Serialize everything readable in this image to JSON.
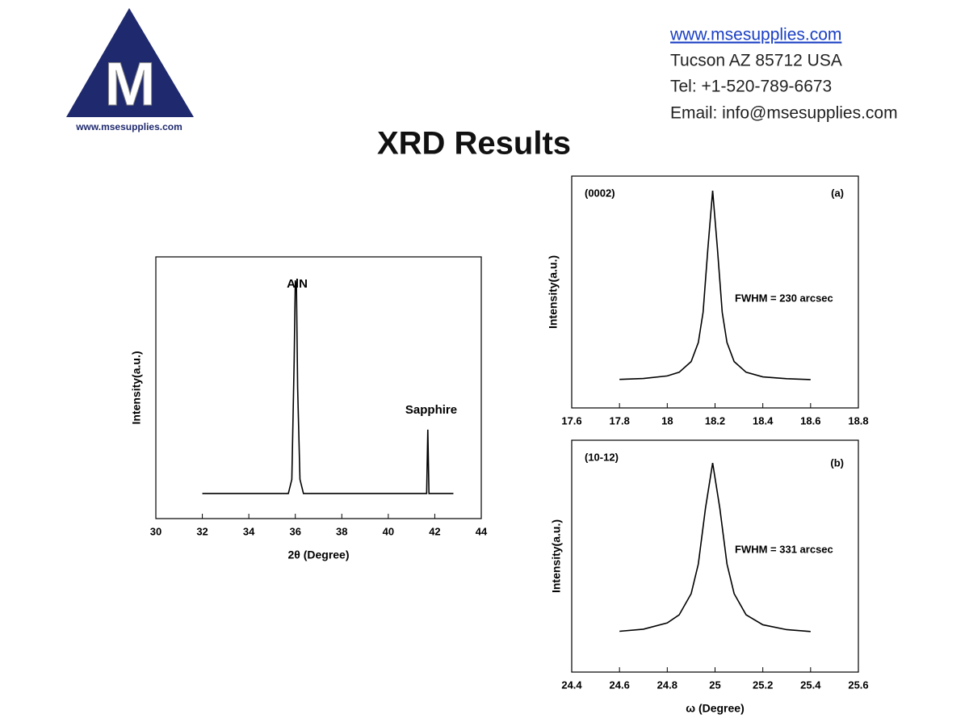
{
  "logo": {
    "letter": "M",
    "url": "www.msesupplies.com"
  },
  "contact": {
    "website": "www.msesupplies.com",
    "address": "Tucson AZ 85712  USA",
    "phone": "Tel: +1-520-789-6673",
    "email": "Email: info@msesupplies.com"
  },
  "title": "XRD Results",
  "chart_data": [
    {
      "type": "line",
      "xlabel": "2θ (Degree)",
      "ylabel": "Intensity(a.u.)",
      "color": "#000000",
      "x": [
        32,
        35.7,
        35.85,
        35.95,
        36.0,
        36.05,
        36.1,
        36.2,
        36.35,
        41.55,
        41.65,
        41.7,
        41.75,
        41.85,
        42.8
      ],
      "values": [
        0.096,
        0.096,
        0.15,
        0.6,
        0.91,
        0.88,
        0.5,
        0.15,
        0.096,
        0.096,
        0.096,
        0.34,
        0.096,
        0.096,
        0.096
      ],
      "xlim": [
        30,
        44
      ],
      "xticks": [
        30,
        32,
        34,
        36,
        38,
        40,
        42,
        44
      ],
      "ylim": [
        0,
        1
      ],
      "annotations": [
        "AlN",
        "Sapphire"
      ]
    },
    {
      "type": "line",
      "ylabel": "Intensity(a.u.)",
      "color": "#000000",
      "x": [
        17.8,
        17.9,
        18.0,
        18.05,
        18.1,
        18.13,
        18.15,
        18.17,
        18.19,
        18.21,
        18.23,
        18.25,
        18.28,
        18.33,
        18.4,
        18.5,
        18.6
      ],
      "values": [
        0.123,
        0.127,
        0.138,
        0.154,
        0.2,
        0.282,
        0.413,
        0.687,
        0.937,
        0.687,
        0.413,
        0.282,
        0.2,
        0.154,
        0.134,
        0.126,
        0.122
      ],
      "xlim": [
        17.6,
        18.8
      ],
      "xticks": [
        17.6,
        17.8,
        18.0,
        18.2,
        18.4,
        18.6,
        18.8
      ],
      "ylim": [
        0,
        1
      ],
      "annotations": [
        "(0002)",
        "(a)",
        "FWHM = 230 arcsec"
      ]
    },
    {
      "type": "line",
      "xlabel": "ω (Degree)",
      "ylabel": "Intensity(a.u.)",
      "color": "#000000",
      "x": [
        24.6,
        24.7,
        24.8,
        24.85,
        24.9,
        24.93,
        24.96,
        24.99,
        25.02,
        25.05,
        25.08,
        25.13,
        25.2,
        25.3,
        25.4
      ],
      "values": [
        0.176,
        0.185,
        0.212,
        0.247,
        0.338,
        0.466,
        0.707,
        0.902,
        0.707,
        0.466,
        0.338,
        0.247,
        0.204,
        0.183,
        0.175
      ],
      "xlim": [
        24.4,
        25.6
      ],
      "xticks": [
        24.4,
        24.6,
        24.8,
        25.0,
        25.2,
        25.4,
        25.6
      ],
      "ylim": [
        0,
        1
      ],
      "annotations": [
        "(10-12)",
        "(b)",
        "FWHM = 331 arcsec"
      ]
    }
  ]
}
